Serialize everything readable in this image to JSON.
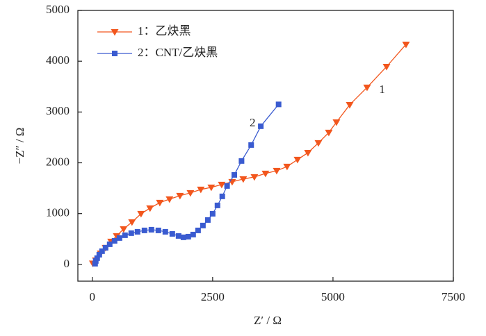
{
  "chart_data": {
    "type": "scatter",
    "xlabel": "Z′ / Ω",
    "ylabel": "−Z″ / Ω",
    "xlim": [
      -300,
      7500
    ],
    "ylim": [
      -330,
      5000
    ],
    "xticks": [
      0,
      2500,
      5000,
      7500
    ],
    "yticks": [
      0,
      1000,
      2000,
      3000,
      4000,
      5000
    ],
    "legend": "upper left",
    "annotations": [
      {
        "text": "1",
        "x": 6020,
        "y": 3430
      },
      {
        "text": "2",
        "x": 3330,
        "y": 2770
      }
    ],
    "series": [
      {
        "name": "1：乙炔黑",
        "color": "#f2561d",
        "marker": "triangle-down",
        "x": [
          10,
          72,
          173,
          275,
          390,
          506,
          650,
          824,
          1012,
          1199,
          1402,
          1604,
          1821,
          2038,
          2254,
          2471,
          2688,
          2905,
          3136,
          3367,
          3598,
          3830,
          4046,
          4263,
          4480,
          4697,
          4913,
          5072,
          5347,
          5708,
          6113,
          6517
        ],
        "values": [
          20,
          82,
          219,
          328,
          451,
          560,
          697,
          833,
          997,
          1107,
          1216,
          1284,
          1352,
          1407,
          1475,
          1516,
          1571,
          1626,
          1680,
          1721,
          1790,
          1844,
          1926,
          2063,
          2199,
          2391,
          2596,
          2800,
          3142,
          3484,
          3893,
          4331
        ]
      },
      {
        "name": "2：CNT/乙炔黑",
        "color": "#3a5bd0",
        "marker": "square",
        "x": [
          58,
          72,
          101,
          145,
          202,
          275,
          361,
          462,
          564,
          679,
          809,
          939,
          1084,
          1228,
          1373,
          1517,
          1662,
          1792,
          1893,
          1994,
          2095,
          2197,
          2298,
          2400,
          2500,
          2600,
          2700,
          2800,
          2950,
          3100,
          3300,
          3500,
          3870
        ],
        "values": [
          14,
          68,
          123,
          191,
          260,
          328,
          396,
          464,
          519,
          574,
          615,
          642,
          669,
          683,
          669,
          642,
          601,
          560,
          533,
          546,
          587,
          669,
          765,
          874,
          997,
          1161,
          1339,
          1544,
          1762,
          2036,
          2350,
          2720,
          3150
        ]
      }
    ]
  }
}
